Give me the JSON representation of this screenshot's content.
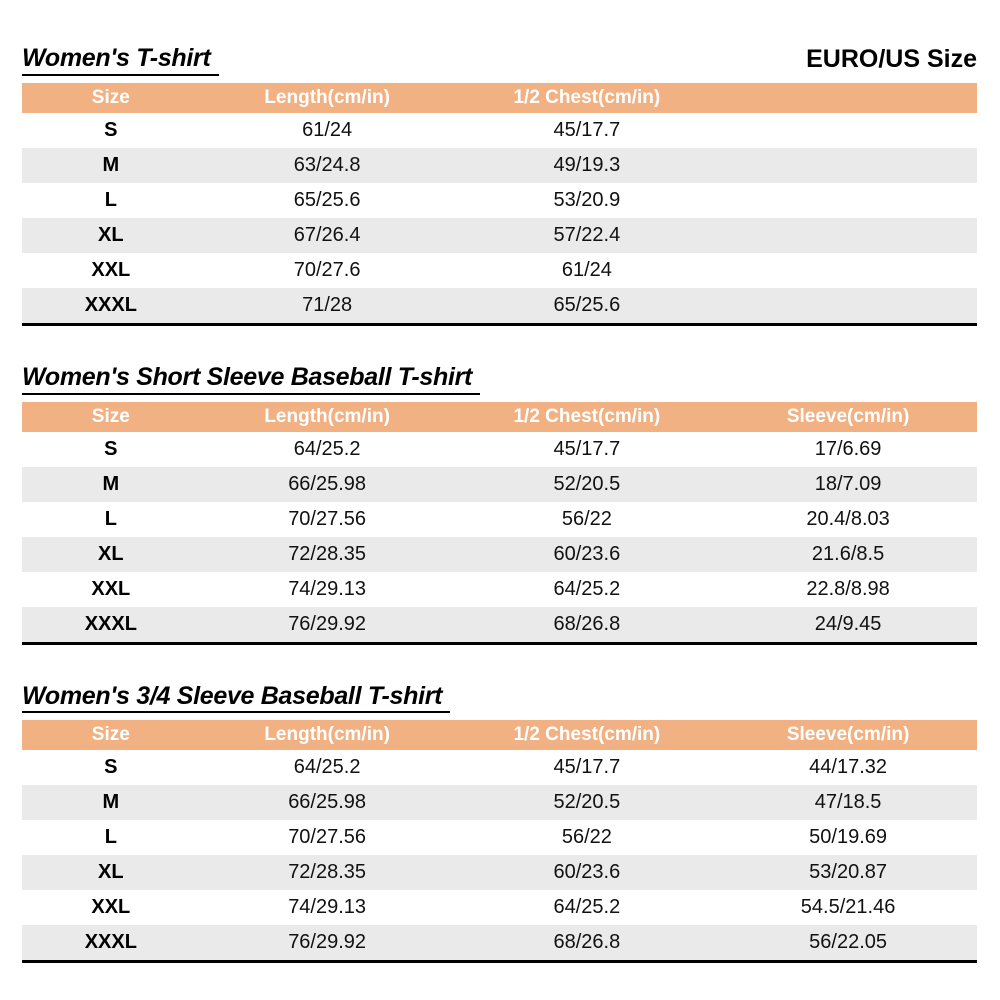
{
  "page": {
    "euro_us_label": "EURO/US Size"
  },
  "colors": {
    "header_bg": "#F2B183",
    "stripe_bg": "#EAEAEA",
    "header_text": "#FFFFFF",
    "border": "#000000"
  },
  "tables": [
    {
      "title": "Women's T-shirt",
      "headers": [
        "Size",
        "Length(cm/in)",
        "1/2 Chest(cm/in)"
      ],
      "rows": [
        [
          "S",
          "61/24",
          "45/17.7"
        ],
        [
          "M",
          "63/24.8",
          "49/19.3"
        ],
        [
          "L",
          "65/25.6",
          "53/20.9"
        ],
        [
          "XL",
          "67/26.4",
          "57/22.4"
        ],
        [
          "XXL",
          "70/27.6",
          "61/24"
        ],
        [
          "XXXL",
          "71/28",
          "65/25.6"
        ]
      ]
    },
    {
      "title": "Women's Short Sleeve Baseball T-shirt",
      "headers": [
        "Size",
        "Length(cm/in)",
        "1/2 Chest(cm/in)",
        "Sleeve(cm/in)"
      ],
      "rows": [
        [
          "S",
          "64/25.2",
          "45/17.7",
          "17/6.69"
        ],
        [
          "M",
          "66/25.98",
          "52/20.5",
          "18/7.09"
        ],
        [
          "L",
          "70/27.56",
          "56/22",
          "20.4/8.03"
        ],
        [
          "XL",
          "72/28.35",
          "60/23.6",
          "21.6/8.5"
        ],
        [
          "XXL",
          "74/29.13",
          "64/25.2",
          "22.8/8.98"
        ],
        [
          "XXXL",
          "76/29.92",
          "68/26.8",
          "24/9.45"
        ]
      ]
    },
    {
      "title": "Women's 3/4 Sleeve Baseball T-shirt",
      "headers": [
        "Size",
        "Length(cm/in)",
        "1/2 Chest(cm/in)",
        "Sleeve(cm/in)"
      ],
      "rows": [
        [
          "S",
          "64/25.2",
          "45/17.7",
          "44/17.32"
        ],
        [
          "M",
          "66/25.98",
          "52/20.5",
          "47/18.5"
        ],
        [
          "L",
          "70/27.56",
          "56/22",
          "50/19.69"
        ],
        [
          "XL",
          "72/28.35",
          "60/23.6",
          "53/20.87"
        ],
        [
          "XXL",
          "74/29.13",
          "64/25.2",
          "54.5/21.46"
        ],
        [
          "XXXL",
          "76/29.92",
          "68/26.8",
          "56/22.05"
        ]
      ]
    }
  ]
}
